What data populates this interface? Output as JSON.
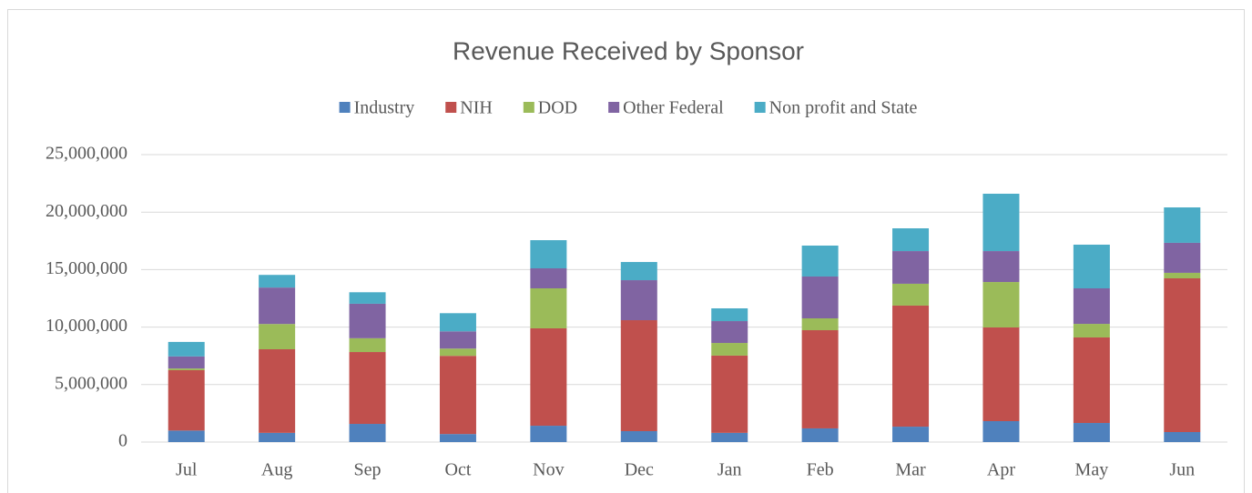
{
  "chart_data": {
    "type": "stacked_bar",
    "title": "Revenue Received by Sponsor",
    "categories": [
      "Jul",
      "Aug",
      "Sep",
      "Oct",
      "Nov",
      "Dec",
      "Jan",
      "Feb",
      "Mar",
      "Apr",
      "May",
      "Jun"
    ],
    "series": [
      {
        "name": "Industry",
        "color": "#4f81bd",
        "values": [
          1000000,
          800000,
          1580000,
          700000,
          1420000,
          950000,
          800000,
          1190000,
          1340000,
          1820000,
          1660000,
          870000
        ]
      },
      {
        "name": "NIH",
        "color": "#c0504d",
        "values": [
          5250000,
          7270000,
          6250000,
          6800000,
          8470000,
          9650000,
          6720000,
          8540000,
          10530000,
          8150000,
          7440000,
          13370000
        ]
      },
      {
        "name": "DOD",
        "color": "#9bbb59",
        "values": [
          150000,
          2200000,
          1200000,
          630000,
          3480000,
          0,
          1100000,
          1030000,
          1900000,
          3950000,
          1180000,
          480000
        ]
      },
      {
        "name": "Other Federal",
        "color": "#8064a2",
        "values": [
          1050000,
          3170000,
          3000000,
          1500000,
          1740000,
          3480000,
          1900000,
          3640000,
          2840000,
          2690000,
          3090000,
          2610000
        ]
      },
      {
        "name": "Non profit and State",
        "color": "#4bacc6",
        "values": [
          1260000,
          1100000,
          1000000,
          1580000,
          2450000,
          1580000,
          1110000,
          2690000,
          1980000,
          4990000,
          3800000,
          3080000
        ]
      }
    ],
    "ylim": [
      0,
      25000000
    ],
    "yticks": [
      0,
      {
        "value": 5000000,
        "label": "5,000,000"
      },
      {
        "value": 10000000,
        "label": "10,000,000"
      },
      {
        "value": 15000000,
        "label": "15,000,000"
      },
      {
        "value": 20000000,
        "label": "20,000,000"
      },
      {
        "value": 25000000,
        "label": "25,000,000"
      }
    ],
    "grid": true,
    "legend": "top"
  }
}
